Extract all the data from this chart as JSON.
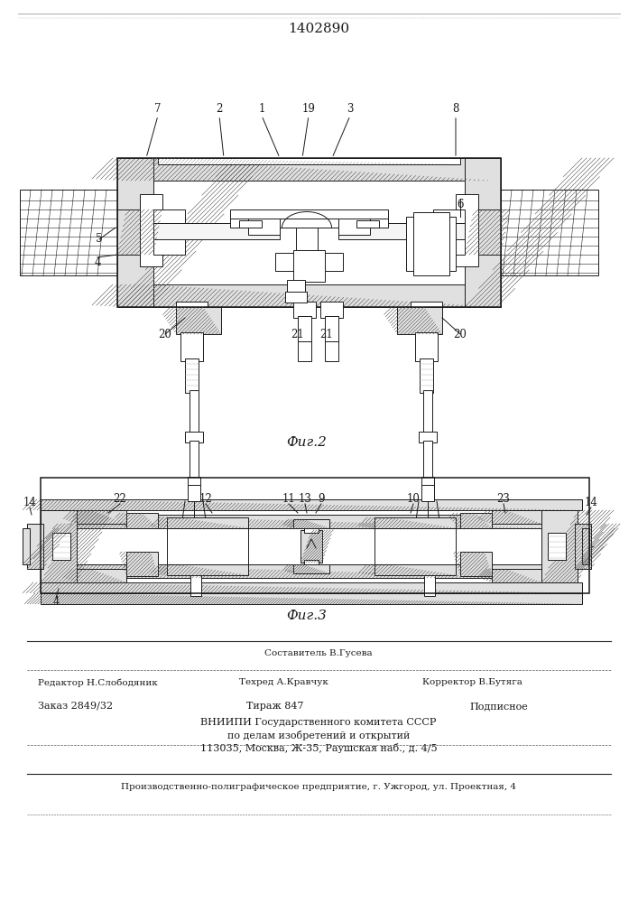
{
  "patent_number": "1402890",
  "fig2_caption": "Фиг.2",
  "fig3_caption": "Фиг.3",
  "footer_sostavitel": "Составитель В.Гусева",
  "footer_redaktor": "Редактор Н.Слободяник",
  "footer_tehred": "Техред А.Кравчук",
  "footer_korrektor": "Корректор В.Бутяга",
  "footer_zakaz": "Заказ 2849/32",
  "footer_tirazh": "Тираж 847",
  "footer_podpisnoe": "Подписное",
  "footer_vniip1": "ВНИИПИ Государственного комитета СССР",
  "footer_vniip2": "по делам изобретений и открытий",
  "footer_vniip3": "113035, Москва, Ж-35, Раушская наб., д. 4/5",
  "footer_production": "Производственно-полиграфическое предприятие, г. Ужгород, ул. Проектная, 4",
  "lc": "#1a1a1a",
  "hc": "#444444"
}
